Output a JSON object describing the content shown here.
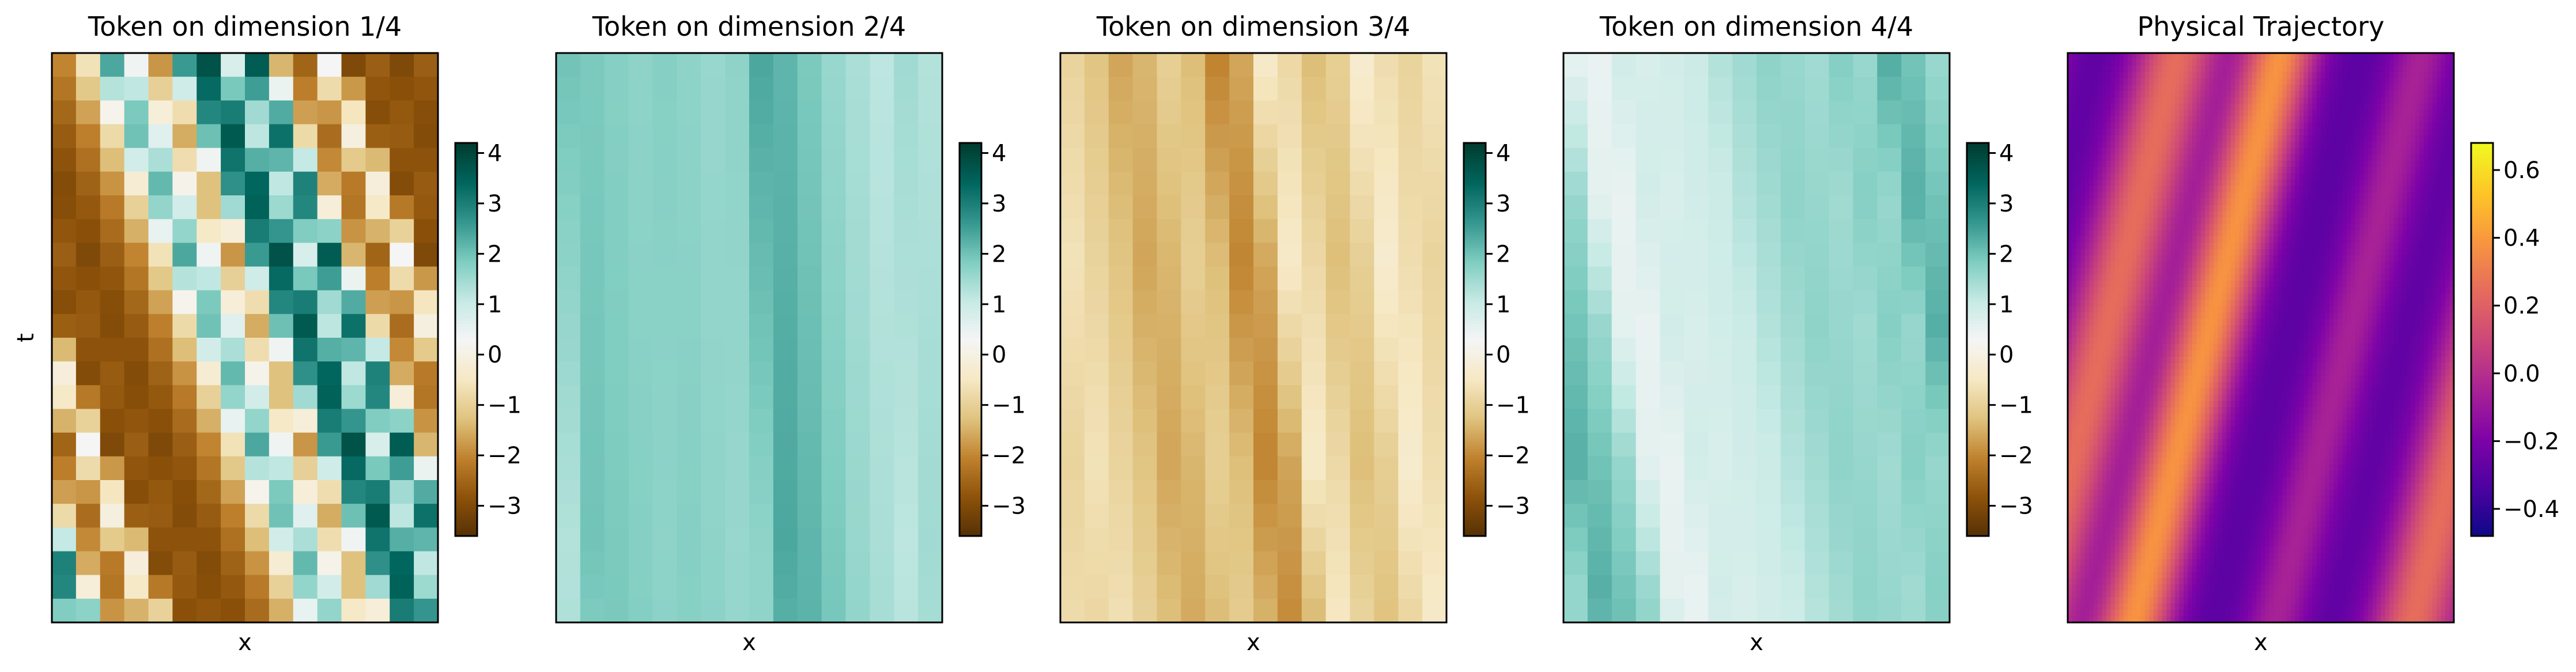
{
  "chart_data": [
    {
      "type": "heatmap",
      "title": "Token on dimension 1/4",
      "xlabel": "x",
      "ylabel": "t",
      "grid": false,
      "colormap": "BrBG",
      "color_scale": [
        -3.6,
        4.2
      ],
      "colorbar_ticks": [
        "4",
        "3",
        "2",
        "1",
        "0",
        "−1",
        "−2",
        "−3"
      ],
      "colorbar_tick_values": [
        4,
        3,
        2,
        1,
        0,
        -1,
        -2,
        -3
      ],
      "n_cols": 16,
      "n_rows": 24,
      "first_row_values": [
        -2.0,
        -0.6,
        2.4,
        0.4,
        -1.8,
        2.6,
        3.8,
        0.8,
        3.6,
        -1.4,
        -2.5,
        0.3,
        -3.0,
        -2.6,
        -3.0,
        -2.6
      ],
      "drift_cols_per_row": 0.375
    },
    {
      "type": "heatmap",
      "title": "Token on dimension 2/4",
      "xlabel": "x",
      "ylabel": "",
      "grid": false,
      "colormap": "BrBG",
      "color_scale": [
        -3.6,
        4.2
      ],
      "colorbar_ticks": [
        "4",
        "3",
        "2",
        "1",
        "0",
        "−1",
        "−2",
        "−3"
      ],
      "colorbar_tick_values": [
        4,
        3,
        2,
        1,
        0,
        -1,
        -2,
        -3
      ],
      "n_cols": 16,
      "n_rows": 24,
      "first_row_values": [
        2.0,
        1.9,
        1.8,
        1.7,
        1.8,
        1.7,
        1.6,
        1.7,
        2.4,
        2.2,
        1.9,
        1.6,
        1.4,
        1.2,
        1.5,
        1.3
      ],
      "drift_cols_per_row": 0.05
    },
    {
      "type": "heatmap",
      "title": "Token on dimension 3/4",
      "xlabel": "x",
      "ylabel": "",
      "grid": false,
      "colormap": "BrBG",
      "color_scale": [
        -3.6,
        4.2
      ],
      "colorbar_ticks": [
        "4",
        "3",
        "2",
        "1",
        "0",
        "−1",
        "−2",
        "−3"
      ],
      "colorbar_tick_values": [
        4,
        3,
        2,
        1,
        0,
        -1,
        -2,
        -3
      ],
      "n_cols": 16,
      "n_rows": 24,
      "first_row_values": [
        -0.9,
        -1.2,
        -1.6,
        -1.4,
        -1.0,
        -1.3,
        -2.0,
        -1.6,
        -0.4,
        -0.8,
        -1.3,
        -1.0,
        -0.3,
        -0.7,
        -0.9,
        -0.6
      ],
      "drift_cols_per_row": 0.12
    },
    {
      "type": "heatmap",
      "title": "Token on dimension 4/4",
      "xlabel": "x",
      "ylabel": "",
      "grid": false,
      "colormap": "BrBG",
      "color_scale": [
        -3.6,
        4.2
      ],
      "colorbar_ticks": [
        "4",
        "3",
        "2",
        "1",
        "0",
        "−1",
        "−2",
        "−3"
      ],
      "colorbar_tick_values": [
        4,
        3,
        2,
        1,
        0,
        -1,
        -2,
        -3
      ],
      "n_cols": 16,
      "n_rows": 24,
      "first_row_values": [
        0.6,
        0.5,
        0.9,
        0.8,
        0.9,
        1.0,
        1.3,
        1.5,
        1.7,
        1.6,
        1.5,
        1.8,
        1.6,
        2.3,
        2.0,
        1.6
      ],
      "drift_cols_per_row": 0.18
    },
    {
      "type": "heatmap",
      "title": "Physical Trajectory",
      "xlabel": "x",
      "ylabel": "",
      "grid": false,
      "colormap": "plasma",
      "color_scale": [
        -0.48,
        0.68
      ],
      "colorbar_ticks": [
        "0.6",
        "0.4",
        "0.2",
        "0.0",
        "−0.2",
        "−0.4"
      ],
      "colorbar_tick_values": [
        0.6,
        0.4,
        0.2,
        0.0,
        -0.2,
        -0.4
      ],
      "field": {
        "waves": [
          {
            "phase": 0.28,
            "amplitude": 0.55,
            "width": 0.08
          },
          {
            "phase": 0.55,
            "amplitude": 0.68,
            "width": 0.07
          },
          {
            "phase": 0.92,
            "amplitude": 0.25,
            "width": 0.06
          }
        ],
        "baseline": -0.3,
        "drift_per_t": 0.38
      }
    }
  ]
}
